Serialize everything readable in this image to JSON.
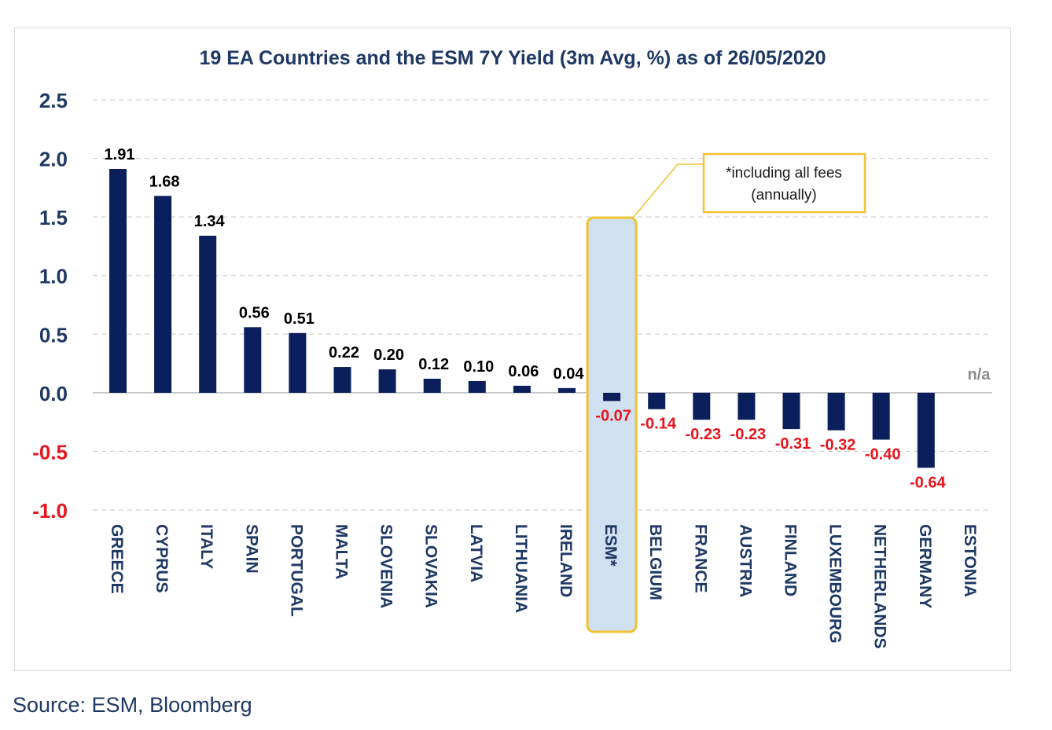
{
  "colors": {
    "bar": "#0b1f5c",
    "title": "#1f3864",
    "positive_label": "#000000",
    "negative_label": "#e8141d",
    "na_label": "#8c8c8c",
    "highlight_fill": "#cfe0f1",
    "highlight_border": "#f1c232",
    "grid": "#d0d0d0"
  },
  "chart_data": {
    "type": "bar",
    "title": "19 EA Countries and the ESM 7Y Yield (3m Avg, %) as of 26/05/2020",
    "xlabel": "",
    "ylabel": "",
    "ylim": [
      -1.0,
      2.5
    ],
    "grid": true,
    "yticks": [
      "2.5",
      "2.0",
      "1.5",
      "1.0",
      "0.5",
      "0.0",
      "-0.5",
      "-1.0"
    ],
    "ytick_values": [
      2.5,
      2.0,
      1.5,
      1.0,
      0.5,
      0.0,
      -0.5,
      -1.0
    ],
    "categories": [
      "GREECE",
      "CYPRUS",
      "ITALY",
      "SPAIN",
      "PORTUGAL",
      "MALTA",
      "SLOVENIA",
      "SLOVAKIA",
      "LATVIA",
      "LITHUANIA",
      "IRELAND",
      "ESM*",
      "BELGIUM",
      "FRANCE",
      "AUSTRIA",
      "FINLAND",
      "LUXEMBOURG",
      "NETHERLANDS",
      "GERMANY",
      "ESTONIA"
    ],
    "values": [
      1.91,
      1.68,
      1.34,
      0.56,
      0.51,
      0.22,
      0.2,
      0.12,
      0.1,
      0.06,
      0.04,
      -0.07,
      -0.14,
      -0.23,
      -0.23,
      -0.31,
      -0.32,
      -0.4,
      -0.64,
      null
    ],
    "labels": [
      "1.91",
      "1.68",
      "1.34",
      "0.56",
      "0.51",
      "0.22",
      "0.20",
      "0.12",
      "0.10",
      "0.06",
      "0.04",
      "-0.07",
      "-0.14",
      "-0.23",
      "-0.23",
      "-0.31",
      "-0.32",
      "-0.40",
      "-0.64",
      "n/a"
    ],
    "highlight_category": "ESM*",
    "annotation": {
      "line1": "*including all fees",
      "line2": "(annually)"
    }
  },
  "source": "Source: ESM, Bloomberg"
}
